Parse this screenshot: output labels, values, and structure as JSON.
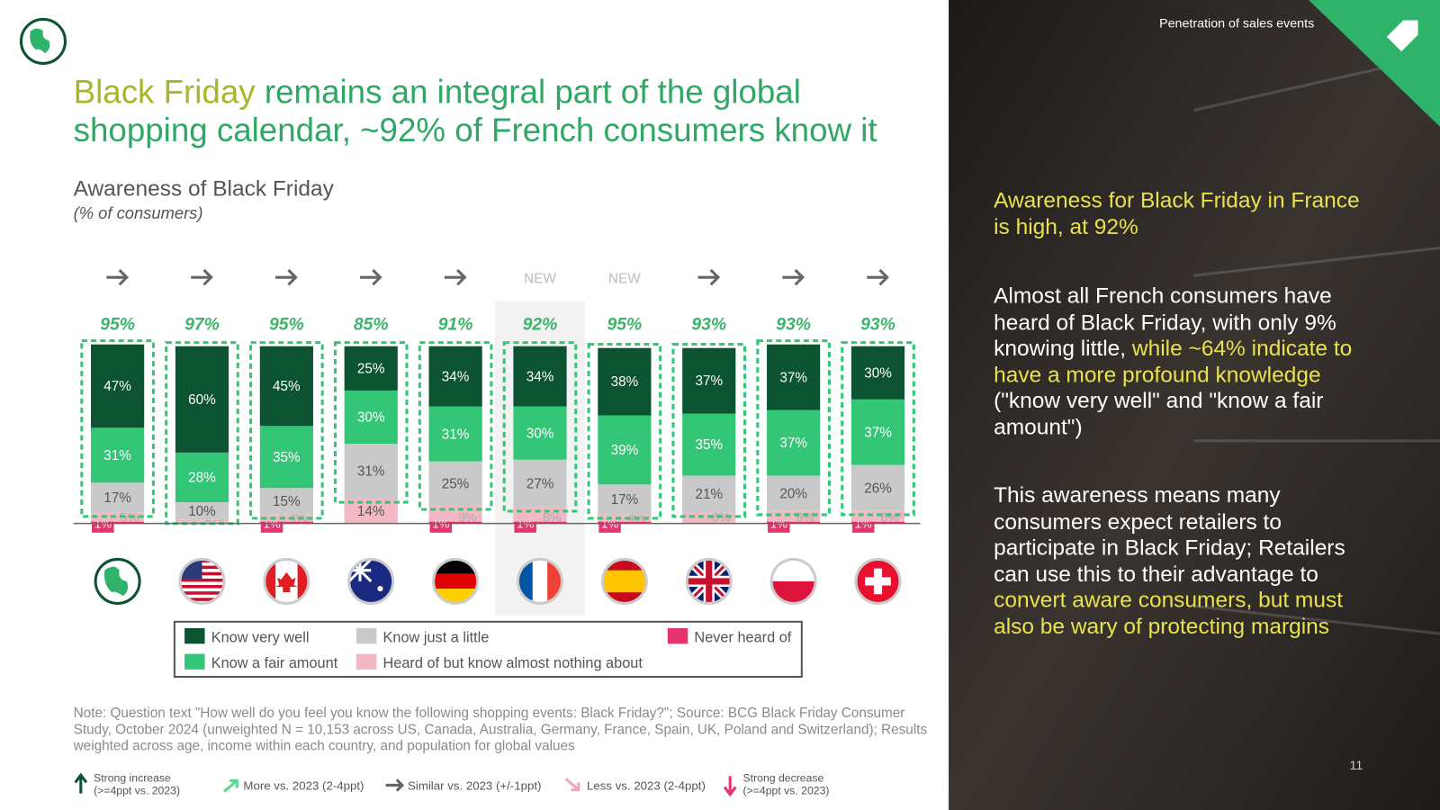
{
  "header": {
    "section": "Penetration of sales events",
    "page_number": "11"
  },
  "title": [
    "Black Friday",
    "remains an integral part of the global",
    "shopping calendar, ~92% of French consumers know it"
  ],
  "chart_data": {
    "type": "stacked_bar",
    "title": "Awareness of Black Friday",
    "subtitle": "(% of consumers)",
    "ylim": [
      0,
      100
    ],
    "trend_labels": [
      null,
      null,
      null,
      null,
      null,
      "NEW",
      "NEW",
      null,
      null,
      null
    ],
    "highlight_index": 5,
    "totals": {
      "values": [
        95,
        97,
        95,
        85,
        91,
        92,
        95,
        93,
        93,
        93
      ],
      "value_labels": [
        "95%",
        "97%",
        "95%",
        "85%",
        "91%",
        "92%",
        "95%",
        "93%",
        "93%",
        "93%"
      ]
    },
    "series": [
      {
        "name": "Never heard of",
        "color": "#e5336b",
        "values": [
          1,
          null,
          1,
          null,
          1,
          1,
          1,
          null,
          1,
          1
        ],
        "value_labels": [
          "1%",
          null,
          "1%",
          null,
          "1%",
          "1%",
          "1%",
          null,
          "1%",
          "1%"
        ]
      },
      {
        "name": "Heard of but know almost nothing about",
        "color": "#f2b8c4",
        "values": [
          5,
          2,
          4,
          14,
          9,
          8,
          4,
          6,
          6,
          6
        ],
        "value_labels": [
          "5%",
          "2%",
          "4%",
          "14%",
          "9%",
          "8%",
          "4%",
          "6%",
          "6%",
          "6%"
        ]
      },
      {
        "name": "Know just a little",
        "color": "#c9c9c9",
        "values": [
          17,
          10,
          15,
          31,
          25,
          27,
          17,
          21,
          20,
          26
        ],
        "value_labels": [
          "17%",
          "10%",
          "15%",
          "31%",
          "25%",
          "27%",
          "17%",
          "21%",
          "20%",
          "26%"
        ]
      },
      {
        "name": "Know a fair amount",
        "color": "#34c677",
        "values": [
          31,
          28,
          35,
          30,
          31,
          30,
          39,
          35,
          37,
          37
        ],
        "value_labels": [
          "31%",
          "28%",
          "35%",
          "30%",
          "31%",
          "30%",
          "39%",
          "35%",
          "37%",
          "37%"
        ]
      },
      {
        "name": "Know very well",
        "color": "#0c5331",
        "values": [
          47,
          60,
          45,
          25,
          34,
          34,
          38,
          37,
          37,
          30
        ],
        "value_labels": [
          "47%",
          "60%",
          "45%",
          "25%",
          "34%",
          "34%",
          "38%",
          "37%",
          "37%",
          "30%"
        ]
      }
    ]
  },
  "note": "Note: Question text \"How well do you feel you know the following shopping events: Black Friday?\"; Source: BCG Black Friday Consumer Study, October 2024 (unweighted N = 10,153 across US, Canada, Australia, Germany, France, Spain, UK, Poland and Switzerland); Results weighted across age, income within each country, and population for global values",
  "trend_legend": [
    "Strong increase (>=4ppt vs. 2023)",
    "More vs. 2023 (2-4ppt)",
    "Similar vs. 2023 (+/-1ppt)",
    "Less vs. 2023 (2-4ppt)",
    "Strong decrease (>=4ppt vs. 2023)"
  ],
  "insights": [
    {
      "parts": [
        "Awareness for Black Friday in France is high, at 92%"
      ]
    },
    {
      "parts": [
        "Almost all French consumers have heard of Black Friday, with only 9% knowing little, ",
        "while ~64% indicate to have a more profound knowledge",
        " (\"know very well\" and \"know a fair amount\")"
      ]
    },
    {
      "parts": [
        "This awareness means many consumers expect retailers to participate in Black Friday; Retailers can use this to their advantage to ",
        "convert aware consumers, but must also be wary of protecting margins"
      ]
    }
  ]
}
